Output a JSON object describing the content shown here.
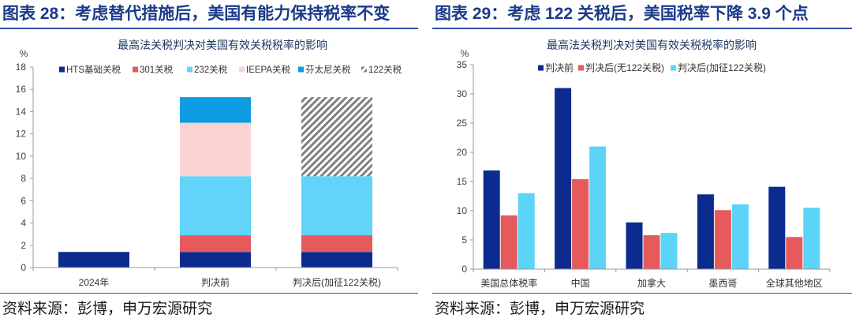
{
  "panels": [
    {
      "figure_title": "图表 28：考虑替代措施后，美国有能力保持税率不变",
      "source": "资料来源：彭博，申万宏源研究"
    },
    {
      "figure_title": "图表 29：考虑 122 关税后，美国税率下降 3.9 个点",
      "source": "资料来源：彭博，申万宏源研究"
    }
  ],
  "colors": {
    "title": "#1B3A8A",
    "rule": "#2F52A3"
  },
  "chart_data": [
    {
      "type": "bar",
      "stacked": true,
      "title": "最高法关税判决对美国有效关税税率的影响",
      "ylabel": "%",
      "ylim": [
        0,
        18
      ],
      "yticks": [
        0,
        2,
        4,
        6,
        8,
        10,
        12,
        14,
        16,
        18
      ],
      "categories": [
        "2024年",
        "判决前",
        "判决后(加征122关税)"
      ],
      "series": [
        {
          "name": "HTS基础关税",
          "color": "#0B2C8E",
          "values": [
            1.4,
            1.4,
            1.4
          ]
        },
        {
          "name": "301关税",
          "color": "#E65A5C",
          "values": [
            0,
            1.5,
            1.5
          ]
        },
        {
          "name": "232关税",
          "color": "#62D4FA",
          "values": [
            0,
            5.3,
            5.3
          ]
        },
        {
          "name": "IEEPA关税",
          "color": "#F9D4D3",
          "values": [
            0,
            4.8,
            0
          ]
        },
        {
          "name": "芬太尼关税",
          "color": "#0F9BE2",
          "values": [
            0,
            2.3,
            0
          ]
        },
        {
          "name": "122关税",
          "color": "#808080",
          "fill": "diagonal-hatch",
          "values": [
            0,
            0,
            7.1
          ]
        }
      ],
      "legend": "top",
      "grid": false
    },
    {
      "type": "bar",
      "stacked": false,
      "title": "最高法关税判决对美国有效关税税率的影响",
      "ylabel": "%",
      "ylim": [
        0,
        35
      ],
      "yticks": [
        0,
        5,
        10,
        15,
        20,
        25,
        30,
        35
      ],
      "categories": [
        "美国总体税率",
        "中国",
        "加拿大",
        "墨西哥",
        "全球其他地区"
      ],
      "series": [
        {
          "name": "判决前",
          "color": "#0B2C8E",
          "values": [
            16.9,
            31.0,
            8.0,
            12.8,
            14.1
          ]
        },
        {
          "name": "判决后(无122关税)",
          "color": "#E65A5C",
          "values": [
            9.2,
            15.4,
            5.8,
            10.1,
            5.5
          ]
        },
        {
          "name": "判决后(加征122关税)",
          "color": "#5CD4F8",
          "values": [
            13.0,
            21.0,
            6.2,
            11.1,
            10.5
          ]
        }
      ],
      "legend": "top",
      "grid": false
    }
  ]
}
